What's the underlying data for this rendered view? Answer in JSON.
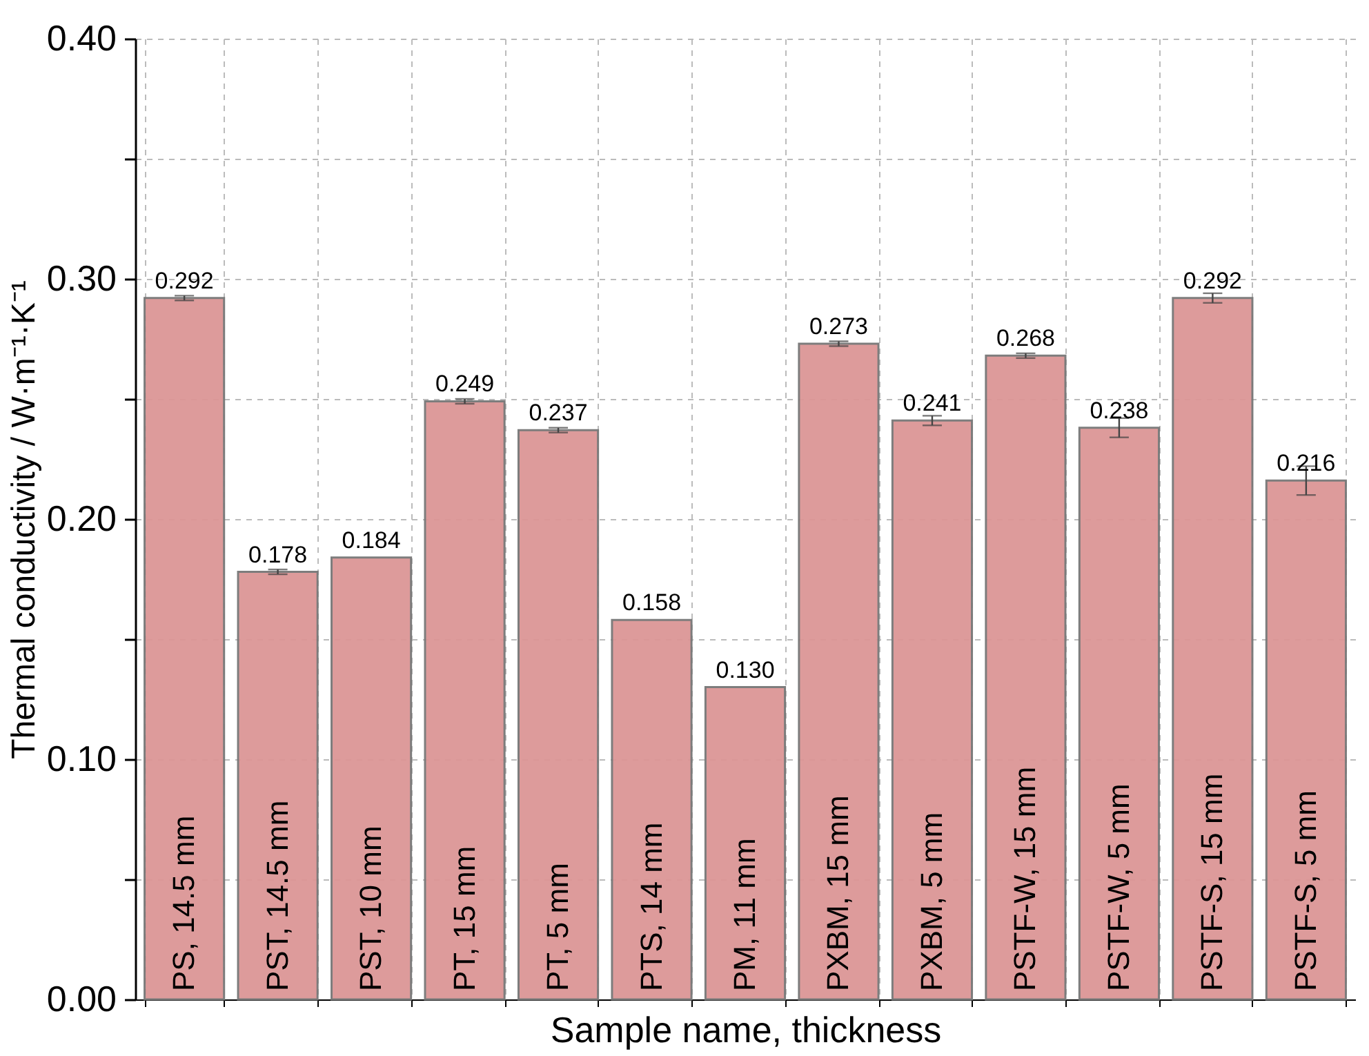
{
  "chart_data": {
    "type": "bar",
    "xlabel": "Sample name, thickness",
    "ylabel": "Thermal conductivity / W·m⁻¹·K⁻¹",
    "categories": [
      "PS, 14.5 mm",
      "PST, 14.5 mm",
      "PST, 10 mm",
      "PT, 15 mm",
      "PT, 5 mm",
      "PTS, 14 mm",
      "PM, 11 mm",
      "PXBM, 15 mm",
      "PXBM, 5 mm",
      "PSTF-W, 15 mm",
      "PSTF-W, 5 mm",
      "PSTF-S, 15 mm",
      "PSTF-S, 5 mm"
    ],
    "values": [
      0.292,
      0.178,
      0.184,
      0.249,
      0.237,
      0.158,
      0.13,
      0.273,
      0.241,
      0.268,
      0.238,
      0.292,
      0.216
    ],
    "errors": [
      0.001,
      0.001,
      null,
      0.001,
      0.001,
      null,
      null,
      0.001,
      0.002,
      0.001,
      0.004,
      0.002,
      0.006
    ],
    "value_labels": [
      "0.292",
      "0.178",
      "0.184",
      "0.249",
      "0.237",
      "0.158",
      "0.130",
      "0.273",
      "0.241",
      "0.268",
      "0.238",
      "0.292",
      "0.216"
    ],
    "color": "#dc9696",
    "grid": true,
    "ylim": [
      0,
      0.4
    ],
    "yticks": [
      {
        "value": 0,
        "label": "0.00"
      },
      {
        "value": 0.05,
        "label": null
      },
      {
        "value": 0.1,
        "label": "0.10"
      },
      {
        "value": 0.15,
        "label": null
      },
      {
        "value": 0.2,
        "label": "0.20"
      },
      {
        "value": 0.25,
        "label": null
      },
      {
        "value": 0.3,
        "label": "0.30"
      },
      {
        "value": 0.35,
        "label": null
      },
      {
        "value": 0.4,
        "label": "0.40"
      }
    ]
  }
}
